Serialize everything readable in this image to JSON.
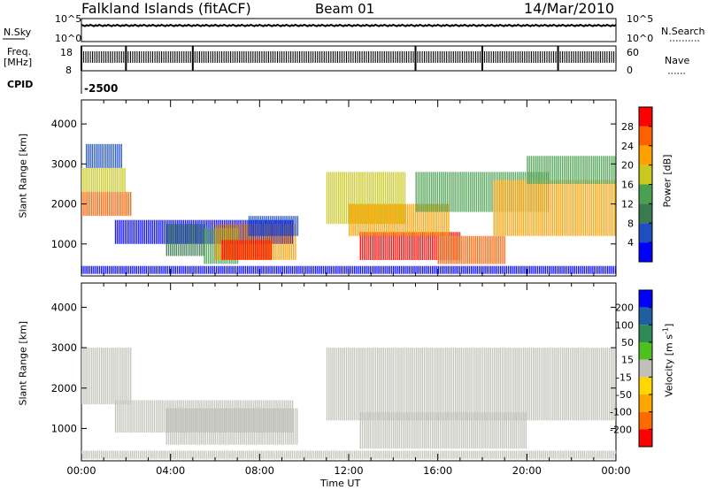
{
  "header": {
    "title": "Falkland Islands (fitACF)",
    "beam": "Beam 01",
    "date": "14/Mar/2010"
  },
  "aux_panels": {
    "nsky_label": "N.Sky",
    "nsearch_label": "N.Search",
    "freq_label_1": "Freq.",
    "freq_label_2": "[MHz]",
    "nave_label": "Nave",
    "cpid_label": "CPID",
    "cpid_value": "-2500",
    "nsky_ticks": [
      "10^5",
      "10^0"
    ],
    "nsearch_ticks": [
      "10^5",
      "10^0"
    ],
    "freq_ticks": [
      "18",
      "8"
    ],
    "nave_ticks": [
      "60",
      "0"
    ]
  },
  "colors": {
    "power": [
      "#0000ff",
      "#1f4fbf",
      "#3a7a50",
      "#4aa050",
      "#c8c820",
      "#ffa000",
      "#ff6000",
      "#ff0000"
    ],
    "velocity": [
      "#ff0000",
      "#ff6a00",
      "#ffa500",
      "#ffd700",
      "#c0c0b8",
      "#4ec020",
      "#2e8b57",
      "#1e5fa0",
      "#0000ff"
    ],
    "ground_scatter": "#c0c0b8"
  },
  "chart_data": [
    {
      "type": "heatmap",
      "name": "power",
      "title": "",
      "xlabel": "Time UT",
      "ylabel": "Slant Range [km]",
      "xlim": [
        "00:00",
        "24:00"
      ],
      "ylim": [
        200,
        4600
      ],
      "xticks": [
        "00:00",
        "04:00",
        "08:00",
        "12:00",
        "16:00",
        "20:00",
        "00:00"
      ],
      "yticks": [
        "1000",
        "2000",
        "3000",
        "4000"
      ],
      "yticks_values": [
        1000,
        2000,
        3000,
        4000
      ],
      "colorbar_label": "Power [dB]",
      "colorbar_ticks": [
        "4",
        "8",
        "12",
        "16",
        "20",
        "24",
        "28"
      ],
      "regions": [
        {
          "t0": 0.0,
          "t1": 2.2,
          "r0": 1700,
          "r1": 2300,
          "level": 6
        },
        {
          "t0": 0.0,
          "t1": 2.0,
          "r0": 2300,
          "r1": 2900,
          "level": 4
        },
        {
          "t0": 0.2,
          "t1": 1.8,
          "r0": 2900,
          "r1": 3500,
          "level": 1
        },
        {
          "t0": 1.5,
          "t1": 9.5,
          "r0": 1000,
          "r1": 1600,
          "level": 0
        },
        {
          "t0": 3.8,
          "t1": 5.5,
          "r0": 700,
          "r1": 1500,
          "level": 2
        },
        {
          "t0": 5.5,
          "t1": 7.0,
          "r0": 500,
          "r1": 1400,
          "level": 3
        },
        {
          "t0": 6.0,
          "t1": 9.6,
          "r0": 600,
          "r1": 1500,
          "level": 5
        },
        {
          "t0": 6.3,
          "t1": 8.5,
          "r0": 600,
          "r1": 1100,
          "level": 7
        },
        {
          "t0": 7.5,
          "t1": 9.7,
          "r0": 1200,
          "r1": 1700,
          "level": 1
        },
        {
          "t0": 11.0,
          "t1": 14.5,
          "r0": 1500,
          "r1": 2800,
          "level": 4
        },
        {
          "t0": 12.5,
          "t1": 17.0,
          "r0": 600,
          "r1": 1300,
          "level": 7
        },
        {
          "t0": 12.0,
          "t1": 16.5,
          "r0": 1200,
          "r1": 2000,
          "level": 5
        },
        {
          "t0": 15.0,
          "t1": 21.0,
          "r0": 1800,
          "r1": 2800,
          "level": 3
        },
        {
          "t0": 16.0,
          "t1": 19.0,
          "r0": 500,
          "r1": 1200,
          "level": 6
        },
        {
          "t0": 18.5,
          "t1": 24.0,
          "r0": 1200,
          "r1": 2600,
          "level": 5
        },
        {
          "t0": 20.0,
          "t1": 24.0,
          "r0": 2500,
          "r1": 3200,
          "level": 3
        },
        {
          "t0": 0.0,
          "t1": 24.0,
          "r0": 250,
          "r1": 450,
          "level": 0
        }
      ]
    },
    {
      "type": "heatmap",
      "name": "velocity",
      "title": "",
      "xlabel": "Time UT",
      "ylabel": "Slant Range [km]",
      "xlim": [
        "00:00",
        "24:00"
      ],
      "ylim": [
        200,
        4600
      ],
      "xticks": [
        "00:00",
        "04:00",
        "08:00",
        "12:00",
        "16:00",
        "20:00",
        "00:00"
      ],
      "yticks": [
        "1000",
        "2000",
        "3000",
        "4000"
      ],
      "yticks_values": [
        1000,
        2000,
        3000,
        4000
      ],
      "colorbar_label": "Velocity [m s",
      "colorbar_label_sup": "-1",
      "colorbar_ticks": [
        "200",
        "100",
        "50",
        "15",
        "-15",
        "-50",
        "-100",
        "-200"
      ],
      "regions": [
        {
          "t0": 0.0,
          "t1": 2.2,
          "r0": 1600,
          "r1": 3000,
          "level": 4
        },
        {
          "t0": 1.5,
          "t1": 9.5,
          "r0": 900,
          "r1": 1700,
          "level": 4
        },
        {
          "t0": 3.8,
          "t1": 9.7,
          "r0": 600,
          "r1": 1500,
          "level": 4
        },
        {
          "t0": 11.0,
          "t1": 24.0,
          "r0": 1200,
          "r1": 3000,
          "level": 4
        },
        {
          "t0": 12.5,
          "t1": 20.0,
          "r0": 500,
          "r1": 1400,
          "level": 4
        },
        {
          "t0": 0.0,
          "t1": 24.0,
          "r0": 250,
          "r1": 450,
          "level": 4
        }
      ]
    }
  ]
}
